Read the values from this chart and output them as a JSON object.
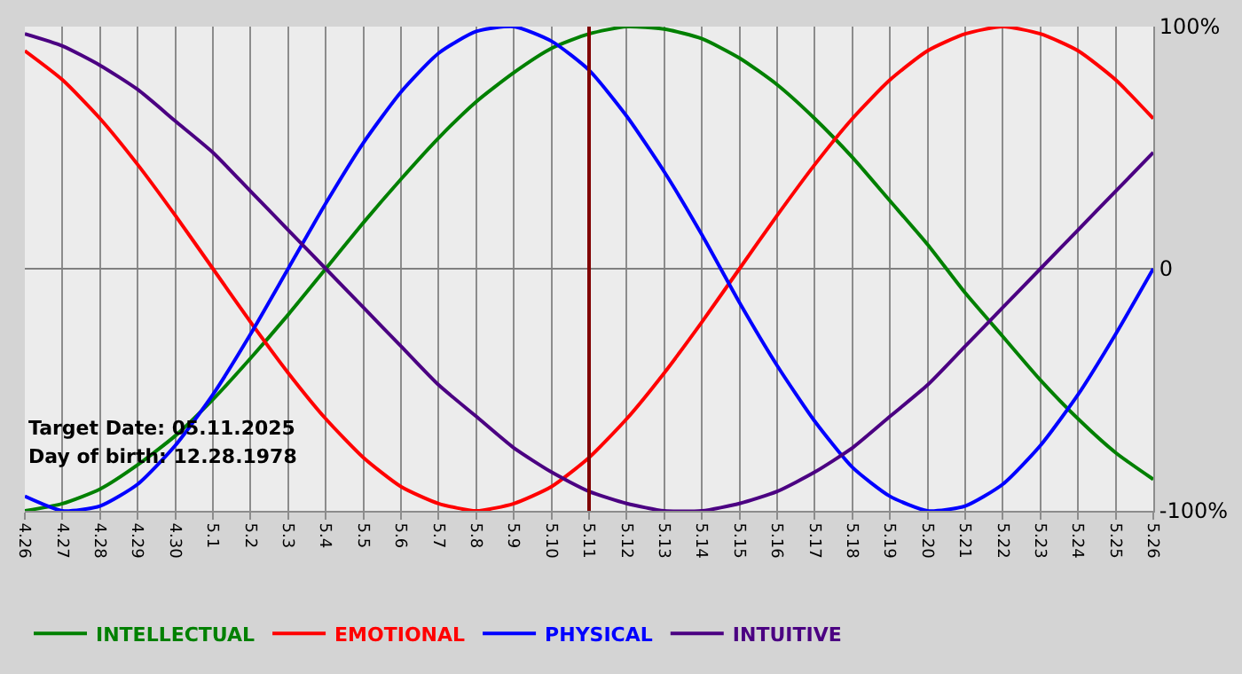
{
  "chart_data": {
    "type": "line",
    "categories": [
      "4.26",
      "4.27",
      "4.28",
      "4.29",
      "4.30",
      "5.1",
      "5.2",
      "5.3",
      "5.4",
      "5.5",
      "5.6",
      "5.7",
      "5.8",
      "5.9",
      "5.10",
      "5.11",
      "5.12",
      "5.13",
      "5.14",
      "5.15",
      "5.16",
      "5.17",
      "5.18",
      "5.19",
      "5.20",
      "5.21",
      "5.22",
      "5.23",
      "5.24",
      "5.25",
      "5.26"
    ],
    "series": [
      {
        "name": "INTELLECTUAL",
        "color": "#008000",
        "values": [
          -100,
          -97,
          -91,
          -81,
          -69,
          -54,
          -37,
          -19,
          0,
          19,
          37,
          54,
          69,
          81,
          91,
          97,
          100,
          99,
          95,
          87,
          76,
          62,
          46,
          28,
          10,
          -10,
          -28,
          -46,
          -62,
          -76,
          -87
        ]
      },
      {
        "name": "EMOTIONAL",
        "color": "#ff0000",
        "values": [
          90,
          78,
          62,
          43,
          22,
          0,
          -22,
          -43,
          -62,
          -78,
          -90,
          -97,
          -100,
          -97,
          -90,
          -78,
          -62,
          -43,
          -22,
          0,
          22,
          43,
          62,
          78,
          90,
          97,
          100,
          97,
          90,
          78,
          62
        ]
      },
      {
        "name": "PHYSICAL",
        "color": "#0000ff",
        "values": [
          -94,
          -100,
          -98,
          -89,
          -73,
          -52,
          -27,
          0,
          27,
          52,
          73,
          89,
          98,
          100,
          94,
          82,
          63,
          40,
          14,
          -14,
          -40,
          -63,
          -82,
          -94,
          -100,
          -98,
          -89,
          -73,
          -52,
          -27,
          0
        ]
      },
      {
        "name": "INTUITIVE",
        "color": "#4b0082",
        "values": [
          97,
          92,
          84,
          74,
          61,
          48,
          32,
          16,
          0,
          -16,
          -32,
          -48,
          -61,
          -74,
          -84,
          -92,
          -97,
          -100,
          -100,
          -97,
          -92,
          -84,
          -74,
          -61,
          -48,
          -32,
          -16,
          0,
          16,
          32,
          48
        ]
      }
    ],
    "ylim": [
      -100,
      100
    ],
    "yticks": [
      {
        "value": 100,
        "label": "100%"
      },
      0,
      {
        "value": -100,
        "label": "-100%"
      }
    ],
    "grid": true,
    "legend": "bottom left",
    "marker": "none",
    "line_style": "solid",
    "ref_lines": [
      {
        "axis": "x",
        "value": "5.11",
        "color": "#800000"
      }
    ],
    "annotations": [
      "Target Date: 05.11.2025",
      "Day of birth: 12.28.1978"
    ]
  }
}
